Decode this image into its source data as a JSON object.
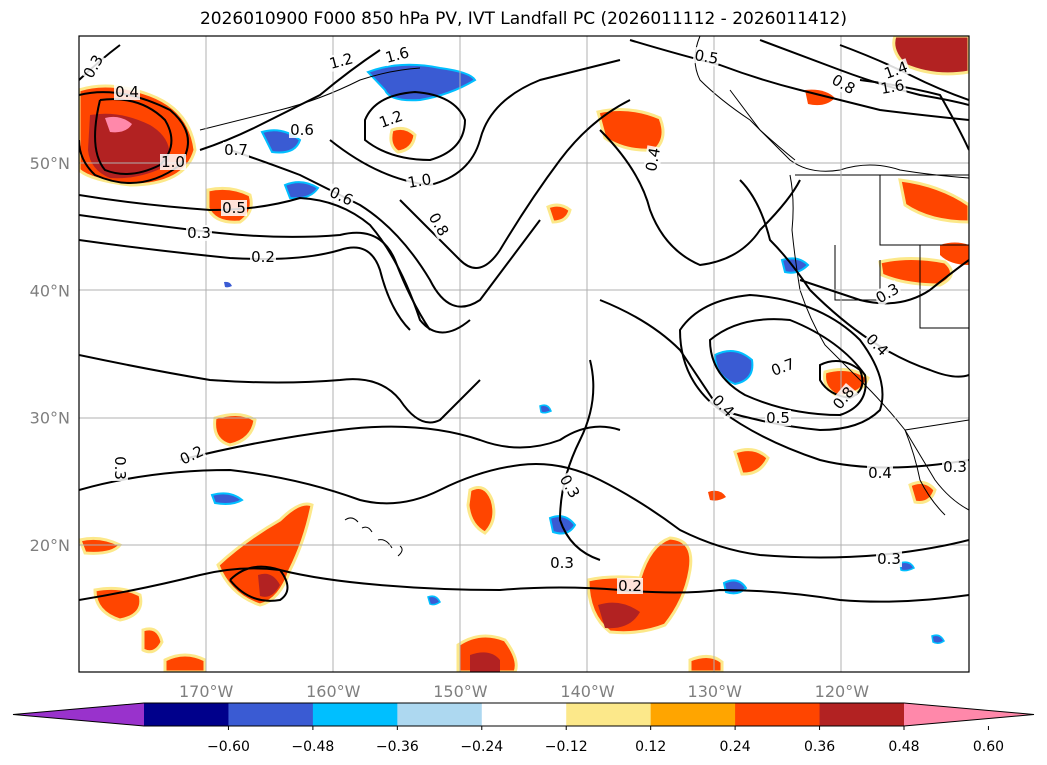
{
  "title": "2026010900 F000 850 hPa PV, IVT Landfall PC (2026011112 - 2026011412)",
  "map": {
    "lon_range": [
      -180,
      -110
    ],
    "lat_range": [
      10,
      60
    ],
    "lon_ticks": [
      {
        "value": -170,
        "label": "170°W"
      },
      {
        "value": -160,
        "label": "160°W"
      },
      {
        "value": -150,
        "label": "150°W"
      },
      {
        "value": -140,
        "label": "140°W"
      },
      {
        "value": -130,
        "label": "130°W"
      },
      {
        "value": -120,
        "label": "120°W"
      }
    ],
    "lat_ticks": [
      {
        "value": 20,
        "label": "20°N"
      },
      {
        "value": 30,
        "label": "30°N"
      },
      {
        "value": 40,
        "label": "40°N"
      },
      {
        "value": 50,
        "label": "50°N"
      }
    ],
    "gridlines": true,
    "contour_labels": [
      "0.3",
      "0.4",
      "1.2",
      "1.6",
      "1.2",
      "0.6",
      "0.7",
      "1.0",
      "0.5",
      "0.3",
      "0.2",
      "0.6",
      "1.0",
      "0.8",
      "0.5",
      "0.8",
      "1.4",
      "1.6",
      "0.3",
      "0.4",
      "0.2",
      "0.3",
      "0.4",
      "0.7",
      "0.5",
      "0.8",
      "0.3",
      "0.4",
      "0.3",
      "0.2",
      "0.3",
      "0.4",
      "0.3"
    ]
  },
  "colorbar": {
    "tick_labels": [
      "−0.60",
      "−0.48",
      "−0.36",
      "−0.24",
      "−0.12",
      "0.12",
      "0.24",
      "0.36",
      "0.48",
      "0.60"
    ],
    "colors": [
      "#9932cc",
      "#00008b",
      "#3a5bd3",
      "#00bfff",
      "#add8f0",
      "#ffffff",
      "#fce88a",
      "#ffa500",
      "#ff4500",
      "#b22222",
      "#ff88aa"
    ],
    "extend": "both"
  },
  "colors": {
    "pos_high": "#b22222",
    "pos_mid": "#ff4500",
    "pos_low": "#ffa500",
    "pos_edge": "#fce88a",
    "neg_mid": "#3a5bd3",
    "neg_low": "#00bfff",
    "pink": "#ff88aa"
  }
}
